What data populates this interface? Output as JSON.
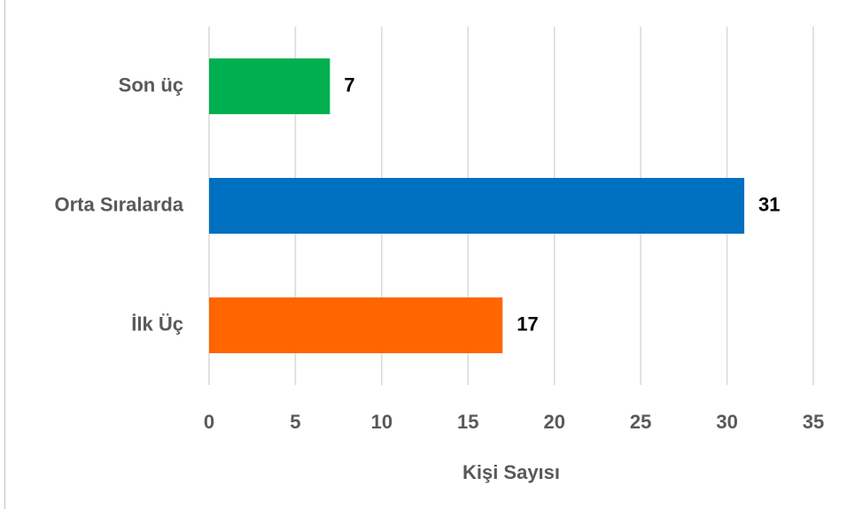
{
  "chart_data": {
    "type": "bar",
    "orientation": "horizontal",
    "categories": [
      "Son üç",
      "Orta Sıralarda",
      "İlk Üç"
    ],
    "values": [
      7,
      31,
      17
    ],
    "colors": [
      "#00b050",
      "#0070c0",
      "#ff6600"
    ],
    "xlabel": "Kişi Sayısı",
    "xlim": [
      0,
      35
    ],
    "xticks": [
      0,
      5,
      10,
      15,
      20,
      25,
      30,
      35
    ],
    "grid": true
  }
}
